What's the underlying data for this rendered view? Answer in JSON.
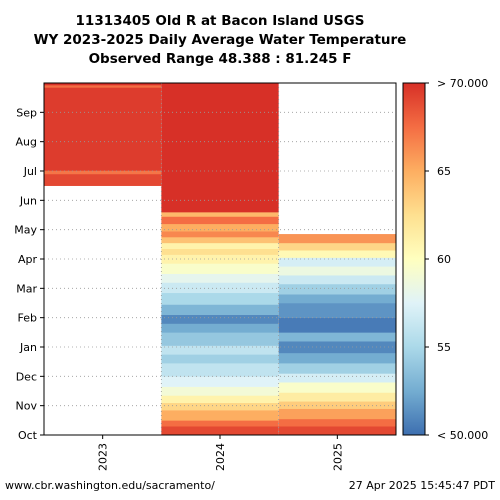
{
  "chart_data": {
    "type": "heatmap",
    "title": [
      "11313405 Old R at Bacon Island USGS",
      "WY 2023-2025 Daily Average Water Temperature",
      "Observed Range 48.388 : 81.245 F"
    ],
    "x_categories": [
      "2023",
      "2024",
      "2025"
    ],
    "y_ticks": [
      "Oct",
      "Nov",
      "Dec",
      "Jan",
      "Feb",
      "Mar",
      "Apr",
      "May",
      "Jun",
      "Jul",
      "Aug",
      "Sep"
    ],
    "grid": true,
    "color_scale": {
      "min": 50,
      "max": 70,
      "tick_labels": [
        "< 50.000",
        "55",
        "60",
        "65",
        "> 70.000"
      ],
      "tick_values": [
        50,
        55,
        60,
        65,
        70
      ],
      "colors": [
        "#3d6fb0",
        "#74add1",
        "#abd9e9",
        "#e0f3f8",
        "#ffffbf",
        "#fee090",
        "#fdae61",
        "#f46d43",
        "#d73027"
      ]
    },
    "columns": [
      {
        "year": "2023",
        "data_start_month": 8.5,
        "data_end_month": 12.0,
        "bands": [
          {
            "from": 8.5,
            "to": 8.9,
            "value": 69.0
          },
          {
            "from": 8.9,
            "to": 9.02,
            "value": 67.2
          },
          {
            "from": 9.02,
            "to": 11.85,
            "value": 69.5
          },
          {
            "from": 11.85,
            "to": 11.93,
            "value": 67.5
          },
          {
            "from": 11.93,
            "to": 12.0,
            "value": 70.0
          }
        ]
      },
      {
        "year": "2024",
        "data_start_month": 0.0,
        "data_end_month": 12.0,
        "bands": [
          {
            "from": 0.0,
            "to": 0.3,
            "value": 69.0
          },
          {
            "from": 0.3,
            "to": 0.5,
            "value": 67.5
          },
          {
            "from": 0.5,
            "to": 0.85,
            "value": 65.0
          },
          {
            "from": 0.85,
            "to": 1.1,
            "value": 63.0
          },
          {
            "from": 1.1,
            "to": 1.35,
            "value": 61.0
          },
          {
            "from": 1.35,
            "to": 1.65,
            "value": 59.0
          },
          {
            "from": 1.65,
            "to": 2.0,
            "value": 57.5
          },
          {
            "from": 2.0,
            "to": 2.45,
            "value": 56.0
          },
          {
            "from": 2.45,
            "to": 2.75,
            "value": 54.5
          },
          {
            "from": 2.75,
            "to": 3.05,
            "value": 56.0
          },
          {
            "from": 3.05,
            "to": 3.5,
            "value": 54.0
          },
          {
            "from": 3.5,
            "to": 3.8,
            "value": 52.5
          },
          {
            "from": 3.8,
            "to": 4.1,
            "value": 51.0
          },
          {
            "from": 4.1,
            "to": 4.45,
            "value": 53.0
          },
          {
            "from": 4.45,
            "to": 4.85,
            "value": 55.0
          },
          {
            "from": 4.85,
            "to": 5.2,
            "value": 56.5
          },
          {
            "from": 5.2,
            "to": 5.5,
            "value": 58.0
          },
          {
            "from": 5.5,
            "to": 5.85,
            "value": 59.5
          },
          {
            "from": 5.85,
            "to": 6.15,
            "value": 61.0
          },
          {
            "from": 6.15,
            "to": 6.35,
            "value": 62.5
          },
          {
            "from": 6.35,
            "to": 6.55,
            "value": 61.0
          },
          {
            "from": 6.55,
            "to": 6.75,
            "value": 64.0
          },
          {
            "from": 6.75,
            "to": 6.95,
            "value": 66.5
          },
          {
            "from": 6.95,
            "to": 7.2,
            "value": 65.0
          },
          {
            "from": 7.2,
            "to": 7.45,
            "value": 67.5
          },
          {
            "from": 7.45,
            "to": 7.6,
            "value": 64.5
          },
          {
            "from": 7.6,
            "to": 12.0,
            "value": 70.0
          }
        ]
      },
      {
        "year": "2025",
        "data_start_month": 0.0,
        "data_end_month": 6.85,
        "bands": [
          {
            "from": 0.0,
            "to": 0.3,
            "value": 69.0
          },
          {
            "from": 0.3,
            "to": 0.55,
            "value": 67.5
          },
          {
            "from": 0.55,
            "to": 0.9,
            "value": 65.5
          },
          {
            "from": 0.9,
            "to": 1.15,
            "value": 63.5
          },
          {
            "from": 1.15,
            "to": 1.45,
            "value": 61.5
          },
          {
            "from": 1.45,
            "to": 1.8,
            "value": 59.5
          },
          {
            "from": 1.8,
            "to": 2.1,
            "value": 57.0
          },
          {
            "from": 2.1,
            "to": 2.45,
            "value": 54.5
          },
          {
            "from": 2.45,
            "to": 2.8,
            "value": 52.5
          },
          {
            "from": 2.8,
            "to": 3.2,
            "value": 51.0
          },
          {
            "from": 3.2,
            "to": 3.5,
            "value": 53.0
          },
          {
            "from": 3.5,
            "to": 4.0,
            "value": 50.5
          },
          {
            "from": 4.0,
            "to": 4.5,
            "value": 51.5
          },
          {
            "from": 4.5,
            "to": 4.8,
            "value": 52.5
          },
          {
            "from": 4.8,
            "to": 5.15,
            "value": 54.5
          },
          {
            "from": 5.15,
            "to": 5.45,
            "value": 56.5
          },
          {
            "from": 5.45,
            "to": 5.75,
            "value": 58.5
          },
          {
            "from": 5.75,
            "to": 6.05,
            "value": 57.0
          },
          {
            "from": 6.05,
            "to": 6.3,
            "value": 60.5
          },
          {
            "from": 6.3,
            "to": 6.55,
            "value": 63.0
          },
          {
            "from": 6.55,
            "to": 6.85,
            "value": 66.0
          }
        ]
      }
    ]
  },
  "footer": {
    "url": "www.cbr.washington.edu/sacramento/",
    "timestamp": "27 Apr 2025 15:45:47 PDT"
  }
}
